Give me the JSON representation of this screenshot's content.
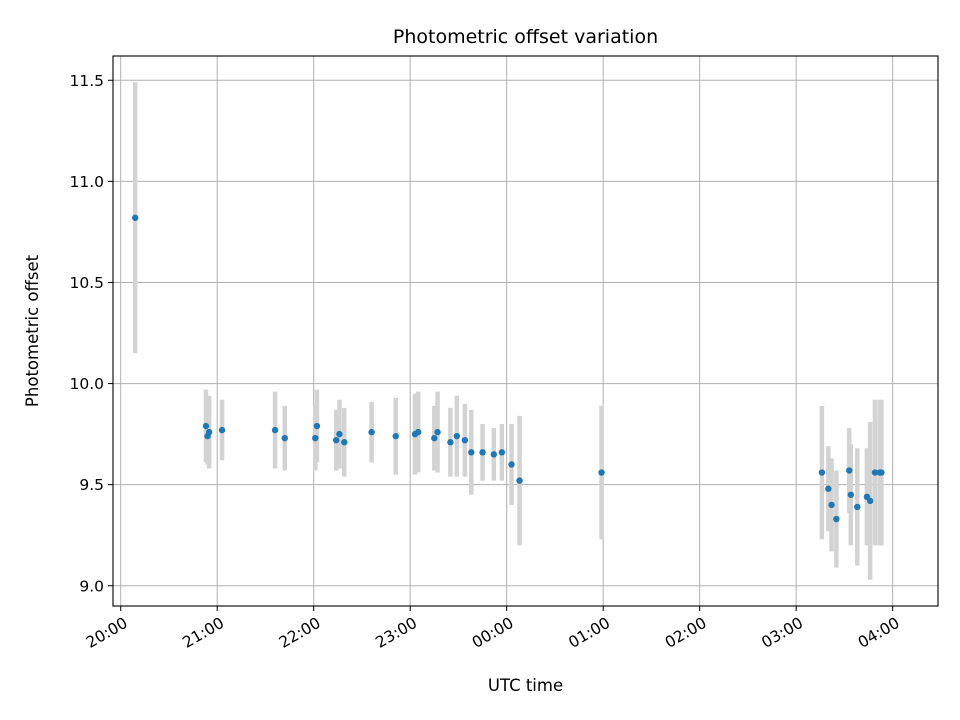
{
  "chart_data": {
    "type": "scatter",
    "title": "Photometric offset variation",
    "xlabel": "UTC time",
    "ylabel": "Photometric offset",
    "xlim_hours": [
      -0.08,
      8.47
    ],
    "ylim": [
      8.9,
      11.62
    ],
    "grid": true,
    "marker_color": "#1f77b4",
    "errorbar_color": "#d3d3d3",
    "x_ticks": [
      {
        "label": "20:00",
        "hour": 0
      },
      {
        "label": "21:00",
        "hour": 1
      },
      {
        "label": "22:00",
        "hour": 2
      },
      {
        "label": "23:00",
        "hour": 3
      },
      {
        "label": "00:00",
        "hour": 4
      },
      {
        "label": "01:00",
        "hour": 5
      },
      {
        "label": "02:00",
        "hour": 6
      },
      {
        "label": "03:00",
        "hour": 7
      },
      {
        "label": "04:00",
        "hour": 8
      }
    ],
    "y_ticks": [
      {
        "label": "9.0",
        "value": 9.0
      },
      {
        "label": "9.5",
        "value": 9.5
      },
      {
        "label": "10.0",
        "value": 10.0
      },
      {
        "label": "10.5",
        "value": 10.5
      },
      {
        "label": "11.0",
        "value": 11.0
      },
      {
        "label": "11.5",
        "value": 11.5
      }
    ],
    "points": [
      {
        "t": "20:09",
        "y": 10.82,
        "err": 0.67
      },
      {
        "t": "20:53",
        "y": 9.79,
        "err": 0.18
      },
      {
        "t": "20:54",
        "y": 9.74,
        "err": 0.14
      },
      {
        "t": "20:55",
        "y": 9.76,
        "err": 0.18
      },
      {
        "t": "21:03",
        "y": 9.77,
        "err": 0.15
      },
      {
        "t": "21:36",
        "y": 9.77,
        "err": 0.19
      },
      {
        "t": "21:42",
        "y": 9.73,
        "err": 0.16
      },
      {
        "t": "22:01",
        "y": 9.73,
        "err": 0.16
      },
      {
        "t": "22:02",
        "y": 9.79,
        "err": 0.18
      },
      {
        "t": "22:14",
        "y": 9.72,
        "err": 0.15
      },
      {
        "t": "22:16",
        "y": 9.75,
        "err": 0.17
      },
      {
        "t": "22:19",
        "y": 9.71,
        "err": 0.17
      },
      {
        "t": "22:36",
        "y": 9.76,
        "err": 0.15
      },
      {
        "t": "22:51",
        "y": 9.74,
        "err": 0.19
      },
      {
        "t": "23:03",
        "y": 9.75,
        "err": 0.2
      },
      {
        "t": "23:05",
        "y": 9.76,
        "err": 0.2
      },
      {
        "t": "23:15",
        "y": 9.73,
        "err": 0.16
      },
      {
        "t": "23:17",
        "y": 9.76,
        "err": 0.2
      },
      {
        "t": "23:25",
        "y": 9.71,
        "err": 0.17
      },
      {
        "t": "23:29",
        "y": 9.74,
        "err": 0.2
      },
      {
        "t": "23:34",
        "y": 9.72,
        "err": 0.18
      },
      {
        "t": "23:38",
        "y": 9.66,
        "err": 0.21
      },
      {
        "t": "23:45",
        "y": 9.66,
        "err": 0.14
      },
      {
        "t": "23:52",
        "y": 9.65,
        "err": 0.13
      },
      {
        "t": "23:57",
        "y": 9.66,
        "err": 0.14
      },
      {
        "t": "00:03",
        "y": 9.6,
        "err": 0.2
      },
      {
        "t": "00:08",
        "y": 9.52,
        "err": 0.32
      },
      {
        "t": "00:59",
        "y": 9.56,
        "err": 0.33
      },
      {
        "t": "03:16",
        "y": 9.56,
        "err": 0.33
      },
      {
        "t": "03:20",
        "y": 9.48,
        "err": 0.21
      },
      {
        "t": "03:22",
        "y": 9.4,
        "err": 0.23
      },
      {
        "t": "03:25",
        "y": 9.33,
        "err": 0.24
      },
      {
        "t": "03:33",
        "y": 9.57,
        "err": 0.21
      },
      {
        "t": "03:34",
        "y": 9.45,
        "err": 0.25
      },
      {
        "t": "03:38",
        "y": 9.39,
        "err": 0.29
      },
      {
        "t": "03:44",
        "y": 9.44,
        "err": 0.24
      },
      {
        "t": "03:46",
        "y": 9.42,
        "err": 0.39
      },
      {
        "t": "03:49",
        "y": 9.56,
        "err": 0.36
      },
      {
        "t": "03:52",
        "y": 9.56,
        "err": 0.36
      },
      {
        "t": "03:53",
        "y": 9.56,
        "err": 0.36
      }
    ]
  }
}
